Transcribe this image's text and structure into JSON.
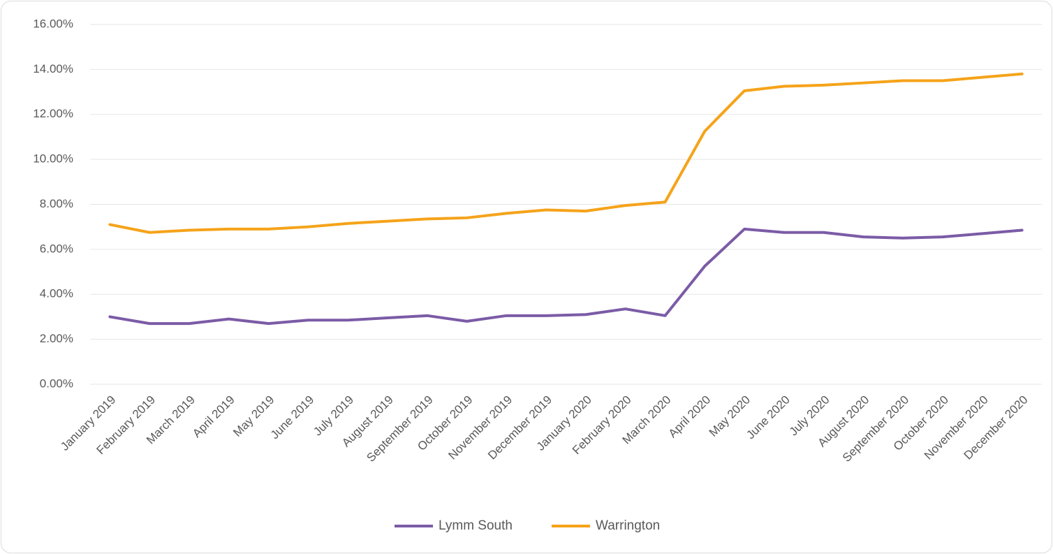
{
  "chart_data": {
    "type": "line",
    "categories": [
      "January 2019",
      "February 2019",
      "March 2019",
      "April 2019",
      "May 2019",
      "June 2019",
      "July 2019",
      "August 2019",
      "September 2019",
      "October 2019",
      "November 2019",
      "December 2019",
      "January 2020",
      "February 2020",
      "March 2020",
      "April 2020",
      "May 2020",
      "June 2020",
      "July 2020",
      "August 2020",
      "September 2020",
      "October 2020",
      "November 2020",
      "December 2020"
    ],
    "series": [
      {
        "name": "Lymm South",
        "color": "#7b5ba6",
        "values": [
          3.0,
          2.7,
          2.7,
          2.9,
          2.7,
          2.85,
          2.85,
          2.95,
          3.05,
          2.8,
          3.05,
          3.05,
          3.1,
          3.35,
          3.05,
          5.25,
          6.9,
          6.75,
          6.75,
          6.55,
          6.5,
          6.55,
          6.7,
          6.85
        ]
      },
      {
        "name": "Warrington",
        "color": "#f5a31a",
        "values": [
          7.1,
          6.75,
          6.85,
          6.9,
          6.9,
          7.0,
          7.15,
          7.25,
          7.35,
          7.4,
          7.6,
          7.75,
          7.7,
          7.95,
          8.1,
          11.25,
          13.05,
          13.25,
          13.3,
          13.4,
          13.5,
          13.5,
          13.65,
          13.8
        ]
      }
    ],
    "ylim": [
      0,
      16
    ],
    "yticks": [
      {
        "value": 0,
        "label": "0.00%"
      },
      {
        "value": 2,
        "label": "2.00%"
      },
      {
        "value": 4,
        "label": "4.00%"
      },
      {
        "value": 6,
        "label": "6.00%"
      },
      {
        "value": 8,
        "label": "8.00%"
      },
      {
        "value": 10,
        "label": "10.00%"
      },
      {
        "value": 12,
        "label": "12.00%"
      },
      {
        "value": 14,
        "label": "14.00%"
      },
      {
        "value": 16,
        "label": "16.00%"
      }
    ],
    "grid": true,
    "legend": "bottom"
  }
}
